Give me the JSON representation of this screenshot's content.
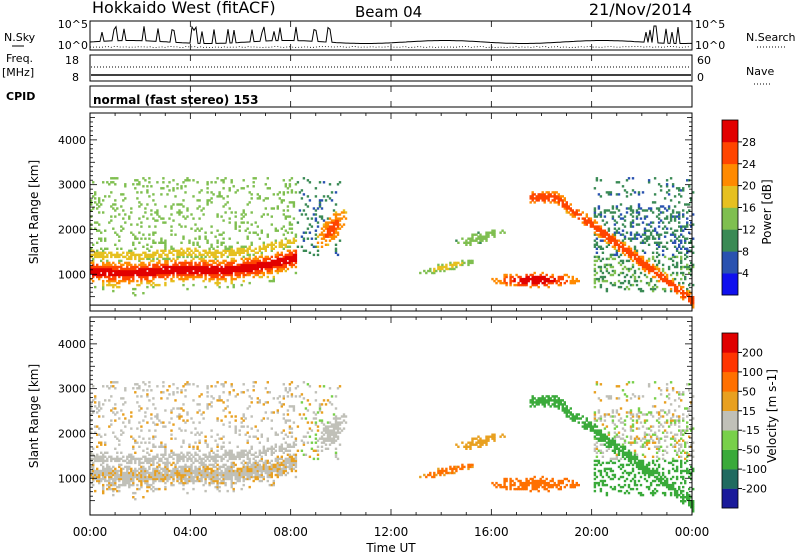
{
  "header": {
    "station": "Hokkaido West (fitACF)",
    "beam": "Beam 04",
    "date": "21/Nov/2014"
  },
  "noise_panel": {
    "left_label": "N.Sky",
    "right_label": "N.Search",
    "ticks_left": [
      "10^5",
      "10^0"
    ],
    "ticks_right": [
      "10^5",
      "10^0"
    ]
  },
  "freq_panel": {
    "left_label_1": "Freq.",
    "left_label_2": "[MHz]",
    "right_label": "Nave",
    "ticks_left": [
      "18",
      "8"
    ],
    "ticks_right": [
      "60",
      "0"
    ]
  },
  "cpid_panel": {
    "label": "CPID",
    "value": "normal (fast stereo) 153"
  },
  "chart_data": [
    {
      "type": "heatmap",
      "name": "Power",
      "ylabel": "Slant Range [km]",
      "ylim": [
        180,
        4600
      ],
      "y_ticks": [
        1000,
        2000,
        3000,
        4000
      ],
      "colorbar_label": "Power [dB]",
      "colorbar_ticks": [
        "4",
        "8",
        "12",
        "16",
        "20",
        "24",
        "28"
      ],
      "colorbar_range": [
        0,
        32
      ],
      "colors": [
        "#1010ee",
        "#2a52b0",
        "#3a8a55",
        "#7fbf50",
        "#e6c020",
        "#ff8a00",
        "#ff4500",
        "#e20000"
      ]
    },
    {
      "type": "heatmap",
      "name": "Velocity",
      "ylabel": "Slant Range [km]",
      "ylim": [
        180,
        4600
      ],
      "y_ticks": [
        1000,
        2000,
        3000,
        4000
      ],
      "colorbar_label": "Velocity [m s-1]",
      "colorbar_ticks": [
        "200",
        "100",
        "50",
        "15",
        "-15",
        "-50",
        "-100",
        "-200"
      ],
      "colors": [
        "#1a1a9a",
        "#206a60",
        "#3aaa3a",
        "#78d04a",
        "#c0c0b8",
        "#e8a020",
        "#ff7000",
        "#ff3500",
        "#e00000"
      ]
    }
  ],
  "x_axis": {
    "label": "Time UT",
    "ticks": [
      "00:00",
      "04:00",
      "08:00",
      "12:00",
      "16:00",
      "20:00",
      "00:00"
    ],
    "xlim": [
      0,
      24
    ]
  }
}
